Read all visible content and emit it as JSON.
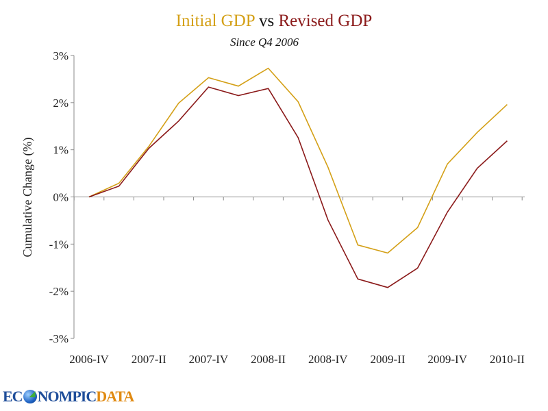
{
  "chart_data": {
    "type": "line",
    "title": {
      "part1": "Initial GDP",
      "part2": " vs ",
      "part3": "Revised GDP"
    },
    "subtitle": "Since Q4 2006",
    "xlabel": "",
    "ylabel": "Cumulative Change (%)",
    "ylim": [
      -3,
      3
    ],
    "yticks": [
      3,
      2,
      1,
      0,
      -1,
      -2,
      -3
    ],
    "ytick_labels": [
      "3%",
      "2%",
      "1%",
      "0%",
      "-1%",
      "-2%",
      "-3%"
    ],
    "categories": [
      "2006-IV",
      "2007-I",
      "2007-II",
      "2007-III",
      "2007-IV",
      "2008-I",
      "2008-II",
      "2008-III",
      "2008-IV",
      "2009-I",
      "2009-II",
      "2009-III",
      "2009-IV",
      "2010-I",
      "2010-II"
    ],
    "xtick_labels": [
      "2006-IV",
      "2007-II",
      "2007-IV",
      "2008-II",
      "2008-IV",
      "2009-II",
      "2009-IV",
      "2010-II"
    ],
    "grid": false,
    "legend": "none (title color-coded)",
    "series": [
      {
        "name": "Initial GDP",
        "color": "#D4A017",
        "values": [
          0.0,
          0.29,
          1.07,
          1.99,
          2.53,
          2.35,
          2.73,
          2.02,
          0.63,
          -1.02,
          -1.19,
          -0.65,
          0.7,
          1.37,
          1.96
        ]
      },
      {
        "name": "Revised GDP",
        "color": "#8B1A1A",
        "values": [
          0.0,
          0.23,
          1.03,
          1.61,
          2.33,
          2.15,
          2.3,
          1.26,
          -0.49,
          -1.74,
          -1.92,
          -1.51,
          -0.32,
          0.61,
          1.19
        ]
      }
    ]
  },
  "branding": {
    "logo_part1": "EC",
    "logo_part2": "NOMPIC",
    "logo_part3": "DATA"
  }
}
